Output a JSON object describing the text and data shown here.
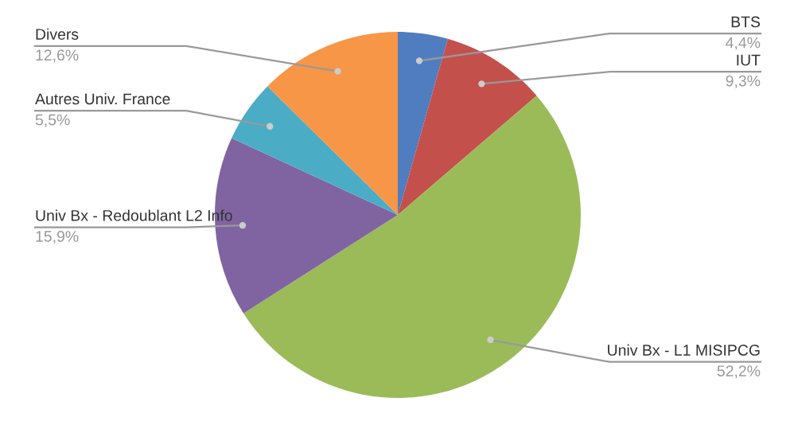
{
  "chart_data": {
    "type": "pie",
    "categories": [
      "BTS",
      "IUT",
      "Univ Bx - L1 MISIPCG",
      "Univ Bx - Redoublant L2 Info",
      "Autres Univ. France",
      "Divers"
    ],
    "values": [
      4.4,
      9.3,
      52.2,
      15.9,
      5.5,
      12.6
    ],
    "value_labels": [
      "4,4%",
      "9,3%",
      "52,2%",
      "15,9%",
      "5,5%",
      "12,6%"
    ],
    "colors": [
      "#4f7dc0",
      "#c4504c",
      "#9bbb59",
      "#8064a2",
      "#4bacc6",
      "#f79646"
    ],
    "legend": false
  }
}
